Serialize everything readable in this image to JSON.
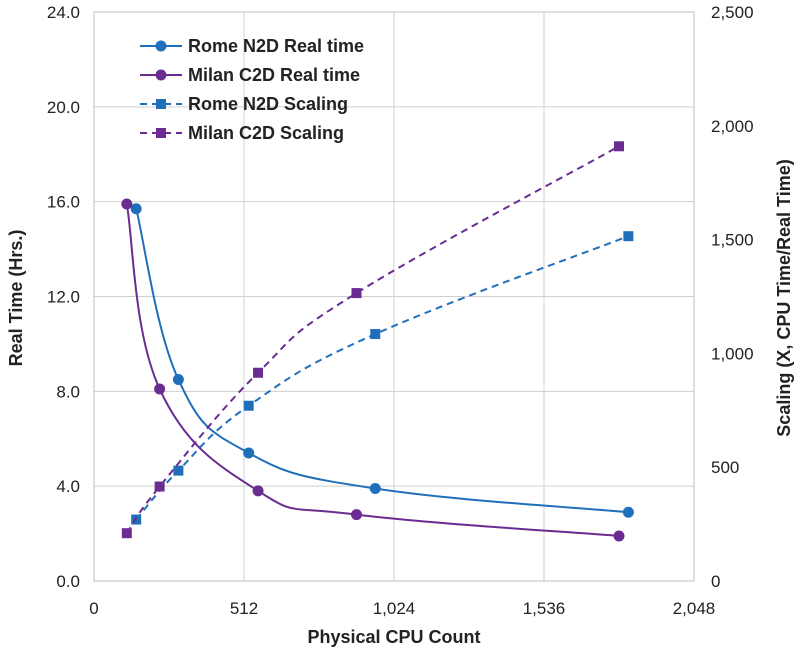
{
  "chart_data": {
    "type": "line",
    "title": "",
    "xlabel": "Physical CPU Count",
    "ylabel": "Real Time (Hrs.)",
    "y2label": "Scaling (X, CPU Time/Real Time)",
    "xlim": [
      0,
      2048
    ],
    "ylim": [
      0,
      24
    ],
    "y2lim": [
      0,
      2500
    ],
    "xticks": [
      0,
      512,
      1024,
      1536,
      2048
    ],
    "xtick_labels": [
      "0",
      "512",
      "1,024",
      "1,536",
      "2,048"
    ],
    "yticks": [
      0,
      4,
      8,
      12,
      16,
      20,
      24
    ],
    "ytick_labels": [
      "0.0",
      "4.0",
      "8.0",
      "12.0",
      "16.0",
      "20.0",
      "24.0"
    ],
    "y2ticks": [
      0,
      500,
      1000,
      1500,
      2000,
      2500
    ],
    "y2tick_labels": [
      "0",
      "500",
      "1,000",
      "1,500",
      "2,000",
      "2,500"
    ],
    "grid": true,
    "legend_position": "top-left",
    "series": [
      {
        "name": "Rome N2D Real time",
        "axis": "left",
        "style": "solid",
        "marker": "circle",
        "color": "#1f6fba",
        "x": [
          144,
          288,
          528,
          960,
          1824
        ],
        "y": [
          15.7,
          8.5,
          5.4,
          3.9,
          2.9
        ]
      },
      {
        "name": "Milan C2D Real time",
        "axis": "left",
        "style": "solid",
        "marker": "circle",
        "color": "#6a2c91",
        "x": [
          112,
          224,
          560,
          896,
          1792
        ],
        "y": [
          15.9,
          8.1,
          3.8,
          2.8,
          1.9
        ]
      },
      {
        "name": "Rome N2D Scaling",
        "axis": "right",
        "style": "dashed",
        "marker": "square",
        "color": "#1f6fba",
        "x": [
          144,
          288,
          528,
          960,
          1824
        ],
        "y": [
          270,
          485,
          770,
          1085,
          1515
        ]
      },
      {
        "name": "Milan C2D Scaling",
        "axis": "right",
        "style": "dashed",
        "marker": "square",
        "color": "#6a2c91",
        "x": [
          112,
          224,
          560,
          896,
          1792
        ],
        "y": [
          210,
          415,
          915,
          1265,
          1910
        ]
      }
    ]
  }
}
